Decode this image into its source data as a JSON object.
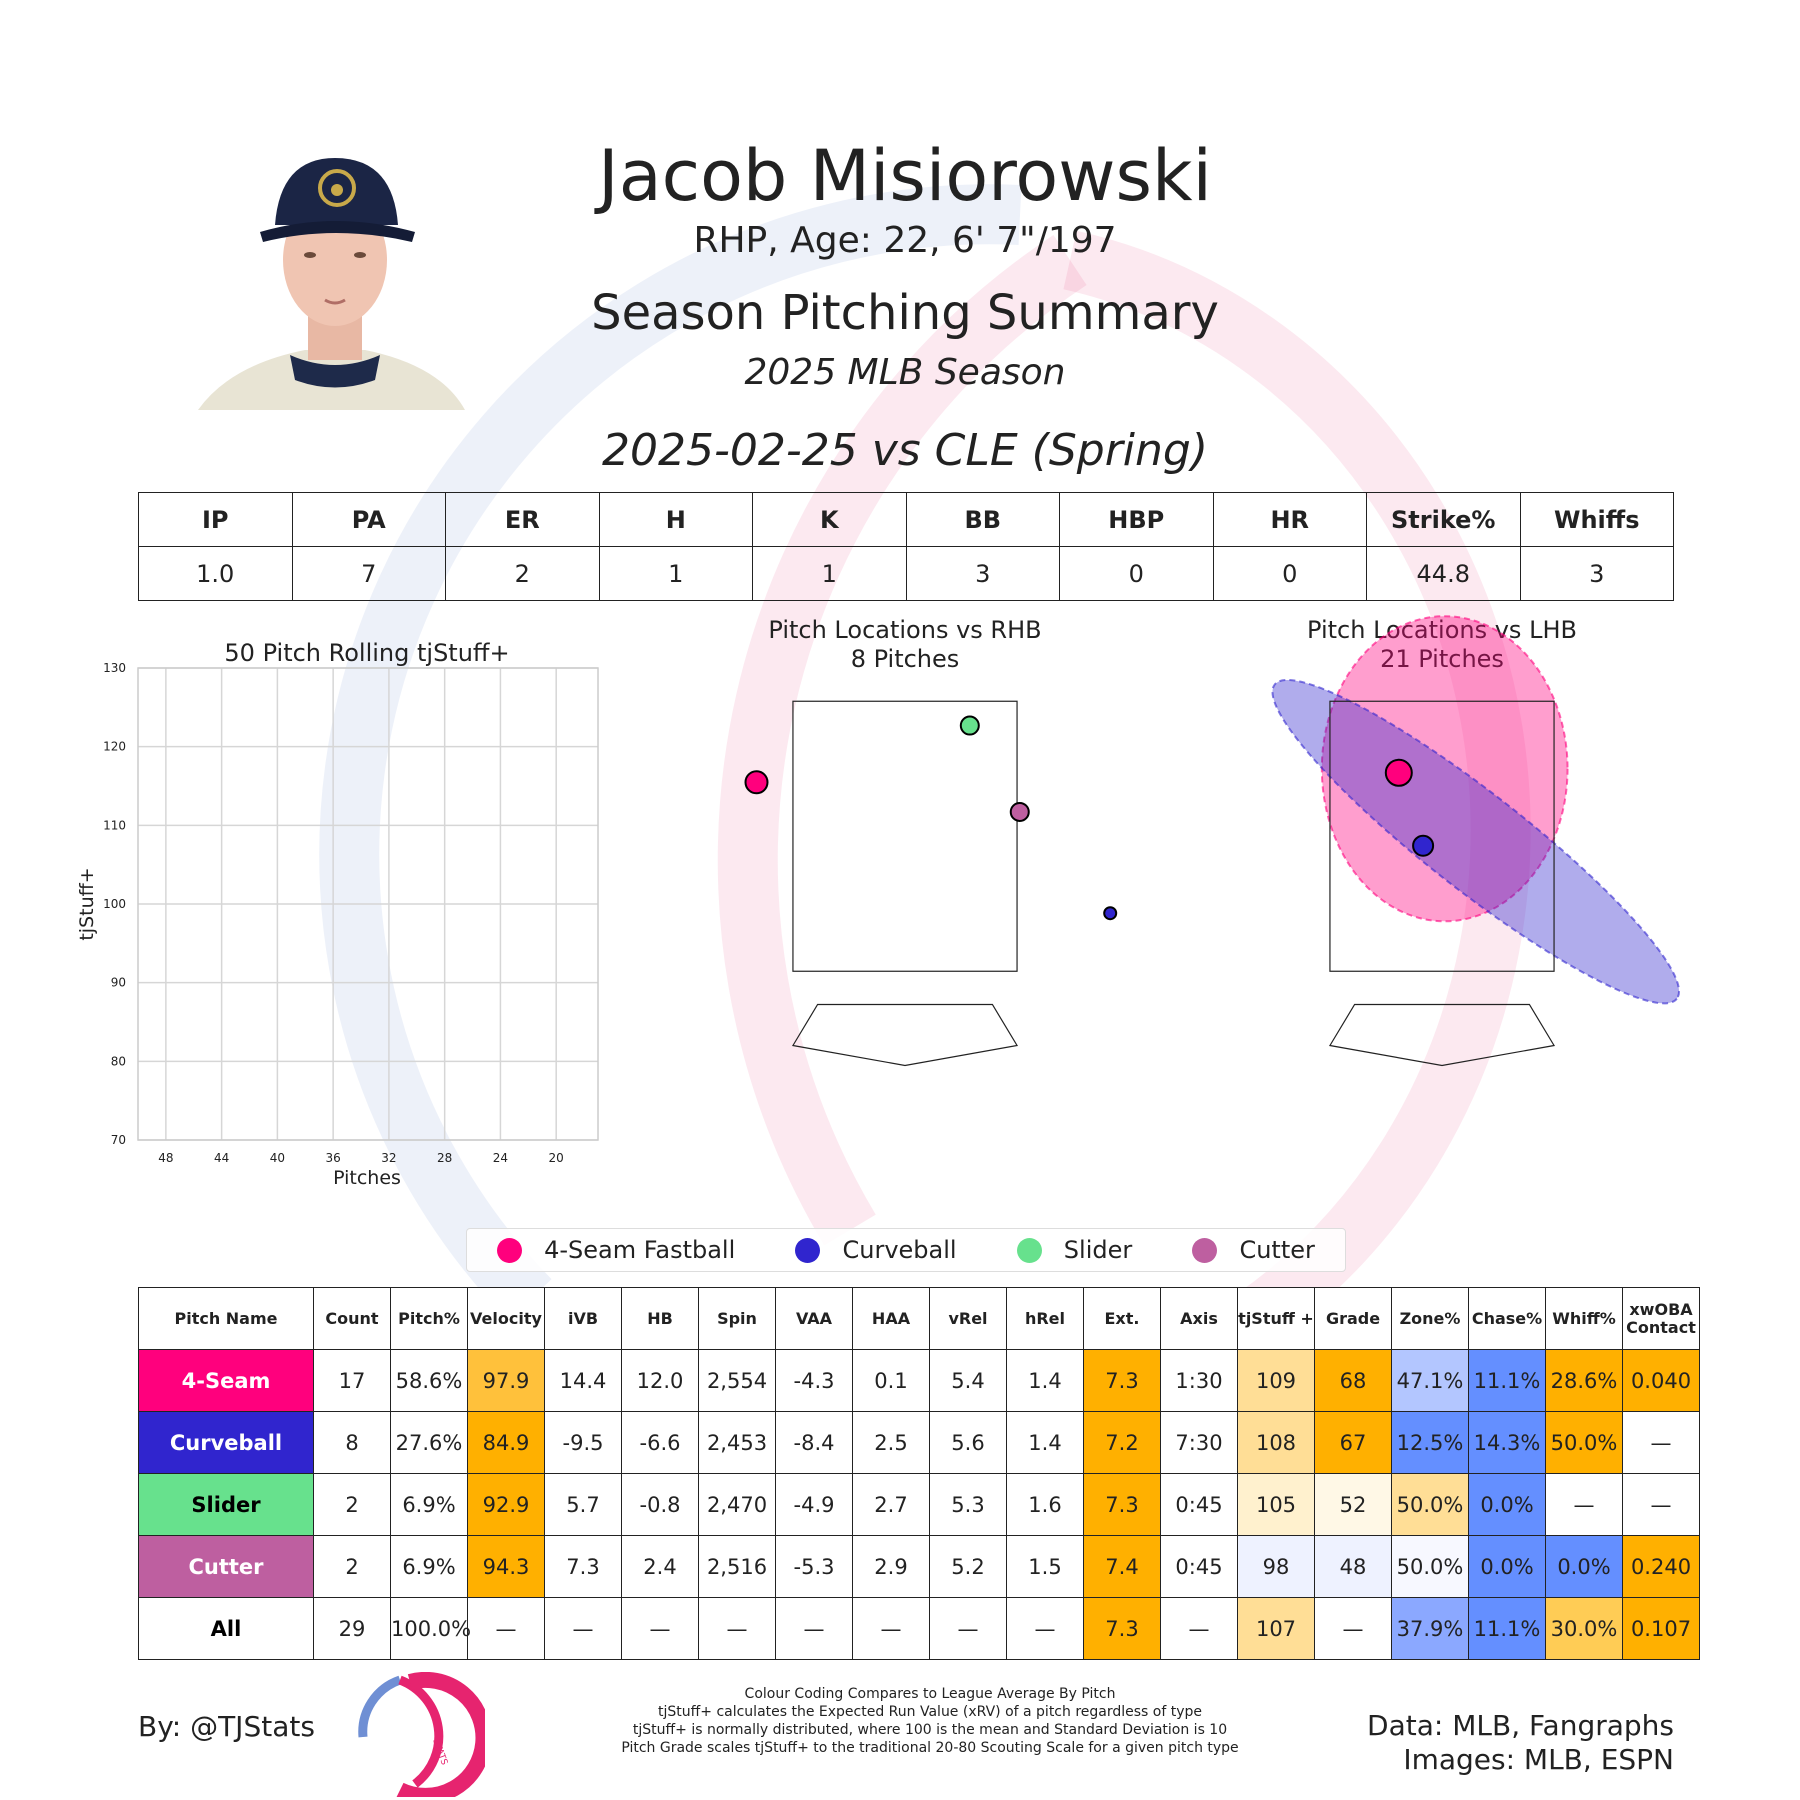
{
  "player": {
    "name": "Jacob Misiorowski",
    "bio": "RHP, Age: 22, 6' 7\"/197",
    "summary_title": "Season Pitching Summary",
    "season": "2025 MLB Season",
    "game": "2025-02-25 vs CLE (Spring)"
  },
  "box_score": {
    "headers": [
      "IP",
      "PA",
      "ER",
      "H",
      "K",
      "BB",
      "HBP",
      "HR",
      "Strike%",
      "Whiffs"
    ],
    "values": [
      "1.0",
      "7",
      "2",
      "1",
      "1",
      "3",
      "0",
      "0",
      "44.8",
      "3"
    ]
  },
  "chart_data": [
    {
      "type": "line",
      "title": "50 Pitch Rolling tjStuff+",
      "xlabel": "Pitches",
      "ylabel": "tjStuff+",
      "x_ticks": [
        "48",
        "44",
        "40",
        "36",
        "32",
        "28",
        "24",
        "20"
      ],
      "y_ticks": [
        "130",
        "120",
        "110",
        "100",
        "90",
        "80",
        "70"
      ],
      "xlim": [
        50,
        17
      ],
      "ylim": [
        70,
        130
      ],
      "grid": true,
      "series": []
    },
    {
      "type": "scatter",
      "title": "Pitch Locations vs RHB",
      "subtitle": "8 Pitches",
      "xlim": [
        -2.5,
        2.5
      ],
      "ylim": [
        0.25,
        4.25
      ],
      "strike_zone": {
        "x": [
          -0.83,
          0.83
        ],
        "y": [
          1.5,
          3.5
        ]
      },
      "points": [
        {
          "pitch": "4-Seam Fastball",
          "x": -1.1,
          "y": 2.9,
          "size": 11
        },
        {
          "pitch": "Slider",
          "x": 0.48,
          "y": 3.32,
          "size": 9
        },
        {
          "pitch": "Cutter",
          "x": 0.85,
          "y": 2.68,
          "size": 9
        },
        {
          "pitch": "Curveball",
          "x": 1.52,
          "y": 1.93,
          "size": 6
        }
      ]
    },
    {
      "type": "scatter",
      "title": "Pitch Locations vs LHB",
      "subtitle": "21 Pitches",
      "xlim": [
        -2.5,
        2.5
      ],
      "ylim": [
        0.25,
        4.25
      ],
      "strike_zone": {
        "x": [
          -0.83,
          0.83
        ],
        "y": [
          1.5,
          3.5
        ]
      },
      "points": [
        {
          "pitch": "4-Seam Fastball",
          "x": -0.32,
          "y": 2.97,
          "size": 13
        },
        {
          "pitch": "Curveball",
          "x": -0.14,
          "y": 2.43,
          "size": 10
        }
      ],
      "ellipses": [
        {
          "pitch": "4-Seam Fastball",
          "cx": 0.02,
          "cy": 3.0,
          "rx": 0.91,
          "ry": 1.13,
          "angle": 0
        },
        {
          "pitch": "Curveball",
          "cx": 0.25,
          "cy": 2.46,
          "rx": 1.89,
          "ry": 0.36,
          "angle": 38
        }
      ]
    }
  ],
  "legend": [
    {
      "label": "4-Seam Fastball",
      "color": "#FF007D"
    },
    {
      "label": "Curveball",
      "color": "#3025CE"
    },
    {
      "label": "Slider",
      "color": "#67E18D"
    },
    {
      "label": "Cutter",
      "color": "#BE5FA0"
    }
  ],
  "pitch_table": {
    "headers": [
      "Pitch Name",
      "Count",
      "Pitch%",
      "Velocity",
      "iVB",
      "HB",
      "Spin",
      "VAA",
      "HAA",
      "vRel",
      "hRel",
      "Ext.",
      "Axis",
      "tjStuff +",
      "Grade",
      "Zone%",
      "Chase%",
      "Whiff%",
      "xwOBA\nContact"
    ],
    "rows": [
      {
        "name": "4-Seam",
        "name_bg": "#FF007D",
        "name_fg": "#ffffff",
        "cells": [
          "17",
          "58.6%",
          "97.9",
          "14.4",
          "12.0",
          "2,554",
          "-4.3",
          "0.1",
          "5.4",
          "1.4",
          "7.3",
          "1:30",
          "109",
          "68",
          "47.1%",
          "11.1%",
          "28.6%",
          "0.040"
        ],
        "colors": [
          "",
          "",
          "#FFC13B",
          "",
          "",
          "",
          "",
          "",
          "",
          "",
          "#FFB000",
          "",
          "#FFDE96",
          "#FFB000",
          "#B3C6FF",
          "#648FFF",
          "#FFB000",
          "#FFB000"
        ]
      },
      {
        "name": "Curveball",
        "name_bg": "#3025CE",
        "name_fg": "#ffffff",
        "cells": [
          "8",
          "27.6%",
          "84.9",
          "-9.5",
          "-6.6",
          "2,453",
          "-8.4",
          "2.5",
          "5.6",
          "1.4",
          "7.2",
          "7:30",
          "108",
          "67",
          "12.5%",
          "14.3%",
          "50.0%",
          "—"
        ],
        "colors": [
          "",
          "",
          "#FFB000",
          "",
          "",
          "",
          "",
          "",
          "",
          "",
          "#FFB000",
          "",
          "#FFDE96",
          "#FFB000",
          "#648FFF",
          "#648FFF",
          "#FFB000",
          ""
        ]
      },
      {
        "name": "Slider",
        "name_bg": "#67E18D",
        "name_fg": "#000000",
        "cells": [
          "2",
          "6.9%",
          "92.9",
          "5.7",
          "-0.8",
          "2,470",
          "-4.9",
          "2.7",
          "5.3",
          "1.6",
          "7.3",
          "0:45",
          "105",
          "52",
          "50.0%",
          "0.0%",
          "—",
          "—"
        ],
        "colors": [
          "",
          "",
          "#FFB000",
          "",
          "",
          "",
          "",
          "",
          "",
          "",
          "#FFB000",
          "",
          "#FFF1CE",
          "#FFF8E6",
          "#FFDE96",
          "#648FFF",
          "",
          ""
        ]
      },
      {
        "name": "Cutter",
        "name_bg": "#BE5FA0",
        "name_fg": "#ffffff",
        "cells": [
          "2",
          "6.9%",
          "94.3",
          "7.3",
          "2.4",
          "2,516",
          "-5.3",
          "2.9",
          "5.2",
          "1.5",
          "7.4",
          "0:45",
          "98",
          "48",
          "50.0%",
          "0.0%",
          "0.0%",
          "0.240"
        ],
        "colors": [
          "",
          "",
          "#FFB000",
          "",
          "",
          "",
          "",
          "",
          "",
          "",
          "#FFB000",
          "",
          "#EEF2FF",
          "#EEF2FF",
          "#F7F8FF",
          "#648FFF",
          "#648FFF",
          "#FFB000"
        ]
      },
      {
        "name": "All",
        "name_bg": "#ffffff",
        "name_fg": "#000000",
        "cells": [
          "29",
          "100.0%",
          "—",
          "—",
          "—",
          "—",
          "—",
          "—",
          "—",
          "—",
          "7.3",
          "—",
          "107",
          "—",
          "37.9%",
          "11.1%",
          "30.0%",
          "0.107"
        ],
        "colors": [
          "",
          "",
          "",
          "",
          "",
          "",
          "",
          "",
          "",
          "",
          "#FFB000",
          "",
          "#FFDE96",
          "",
          "#8BA8FF",
          "#648FFF",
          "#FFCC55",
          "#FFB000"
        ]
      }
    ]
  },
  "footer": {
    "byline": "By: @TJStats",
    "logo_text": "STATS",
    "notes": [
      "Colour Coding Compares to League Average By Pitch",
      "tjStuff+ calculates the Expected Run Value (xRV) of a pitch regardless of type",
      "tjStuff+ is normally distributed, where 100 is the mean and Standard Deviation is 10",
      "Pitch Grade scales tjStuff+ to the traditional 20-80 Scouting Scale for a given pitch type"
    ],
    "credits": [
      "Data: MLB, Fangraphs",
      "Images: MLB, ESPN"
    ]
  }
}
